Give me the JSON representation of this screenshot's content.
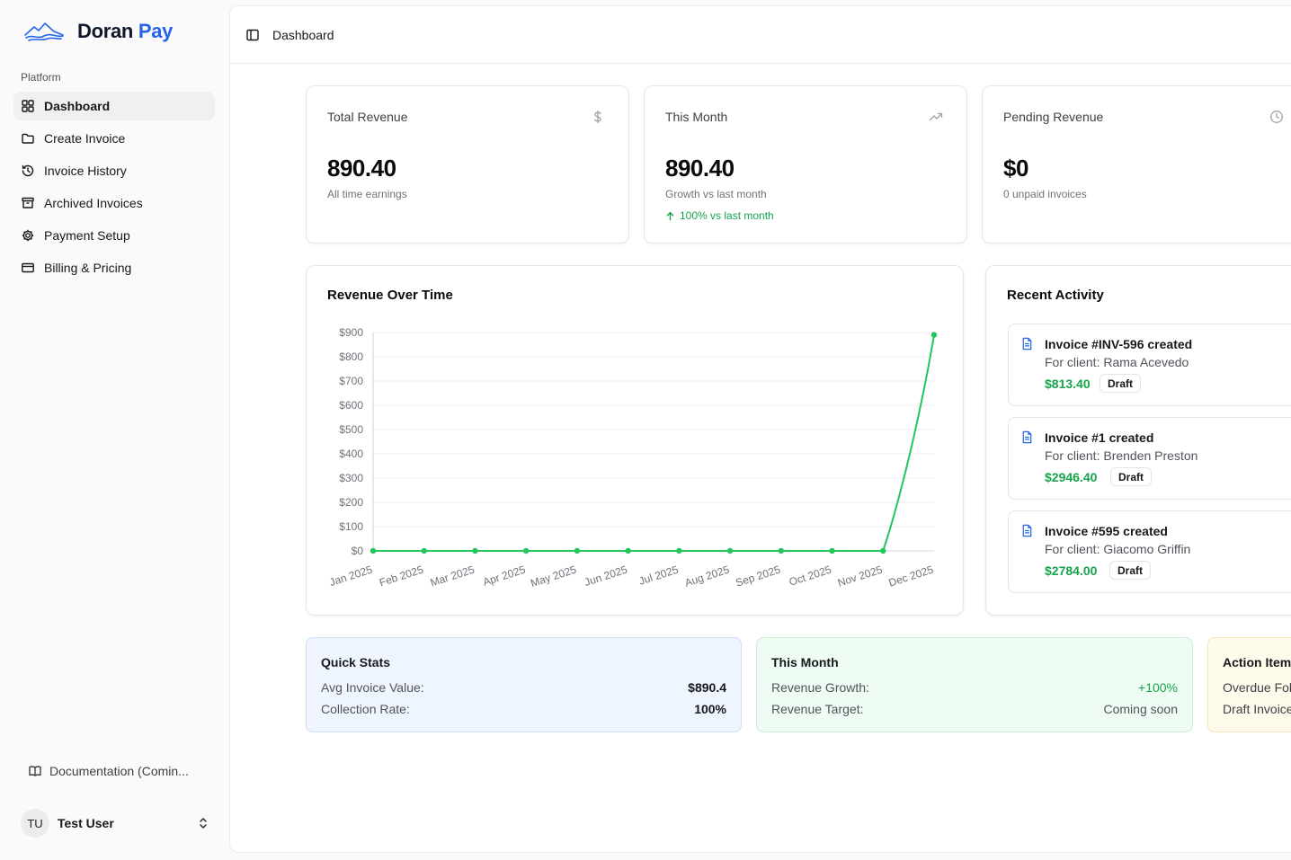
{
  "brand": {
    "name_part1": "Doran",
    "name_part2": "Pay",
    "accent": "#2563eb",
    "logo_icon": "mountain-waves-logo"
  },
  "sidebar": {
    "group_label": "Platform",
    "items": [
      {
        "label": "Dashboard",
        "icon": "grid-icon",
        "active": true
      },
      {
        "label": "Create Invoice",
        "icon": "folder-icon"
      },
      {
        "label": "Invoice History",
        "icon": "history-icon"
      },
      {
        "label": "Archived Invoices",
        "icon": "archive-icon"
      },
      {
        "label": "Payment Setup",
        "icon": "gear-icon"
      },
      {
        "label": "Billing & Pricing",
        "icon": "credit-card-icon"
      }
    ],
    "docs_label": "Documentation (Comin...",
    "user": {
      "initials": "TU",
      "name": "Test User"
    }
  },
  "topbar": {
    "title": "Dashboard"
  },
  "stats": [
    {
      "title": "Total Revenue",
      "value": "890.40",
      "sub": "All time earnings",
      "icon": "dollar-icon"
    },
    {
      "title": "This Month",
      "value": "890.40",
      "sub": "Growth vs last month",
      "trend": "100% vs last month",
      "icon": "trending-up-icon"
    },
    {
      "title": "Pending Revenue",
      "value": "$0",
      "sub": "0 unpaid invoices",
      "icon": "clock-icon"
    }
  ],
  "chart_title": "Revenue Over Time",
  "chart_data": {
    "type": "line",
    "title": "Revenue Over Time",
    "categories": [
      "Jan 2025",
      "Feb 2025",
      "Mar 2025",
      "Apr 2025",
      "May 2025",
      "Jun 2025",
      "Jul 2025",
      "Aug 2025",
      "Sep 2025",
      "Oct 2025",
      "Nov 2025",
      "Dec 2025"
    ],
    "series": [
      {
        "values": [
          0,
          0,
          0,
          0,
          0,
          0,
          0,
          0,
          0,
          0,
          0,
          890.4
        ],
        "color": "#22c55e"
      }
    ],
    "yticks": [
      "$0",
      "$100",
      "$200",
      "$300",
      "$400",
      "$500",
      "$600",
      "$700",
      "$800",
      "$900"
    ],
    "ylim": [
      0,
      900
    ],
    "grid": true,
    "legend": "none"
  },
  "activity": {
    "title": "Recent Activity",
    "items": [
      {
        "title": "Invoice #INV-596 created",
        "client": "For client: Rama Acevedo",
        "amount": "$813.40",
        "status": "Draft"
      },
      {
        "title": "Invoice #1 created",
        "client": "For client: Brenden Preston",
        "amount": "$2946.40",
        "status": "Draft"
      },
      {
        "title": "Invoice #595 created",
        "client": "For client: Giacomo Griffin",
        "amount": "$2784.00",
        "status": "Draft"
      }
    ]
  },
  "quick_stats": {
    "title": "Quick Stats",
    "rows": [
      {
        "label": "Avg Invoice Value:",
        "value": "$890.4"
      },
      {
        "label": "Collection Rate:",
        "value": "100%"
      }
    ]
  },
  "this_month": {
    "title": "This Month",
    "rows": [
      {
        "label": "Revenue Growth:",
        "value": "+100%"
      },
      {
        "label": "Revenue Target:",
        "value": "Coming soon"
      }
    ]
  },
  "action_items": {
    "title": "Action Items",
    "rows": [
      {
        "label": "Overdue Fol"
      },
      {
        "label": "Draft Invoice"
      }
    ]
  }
}
